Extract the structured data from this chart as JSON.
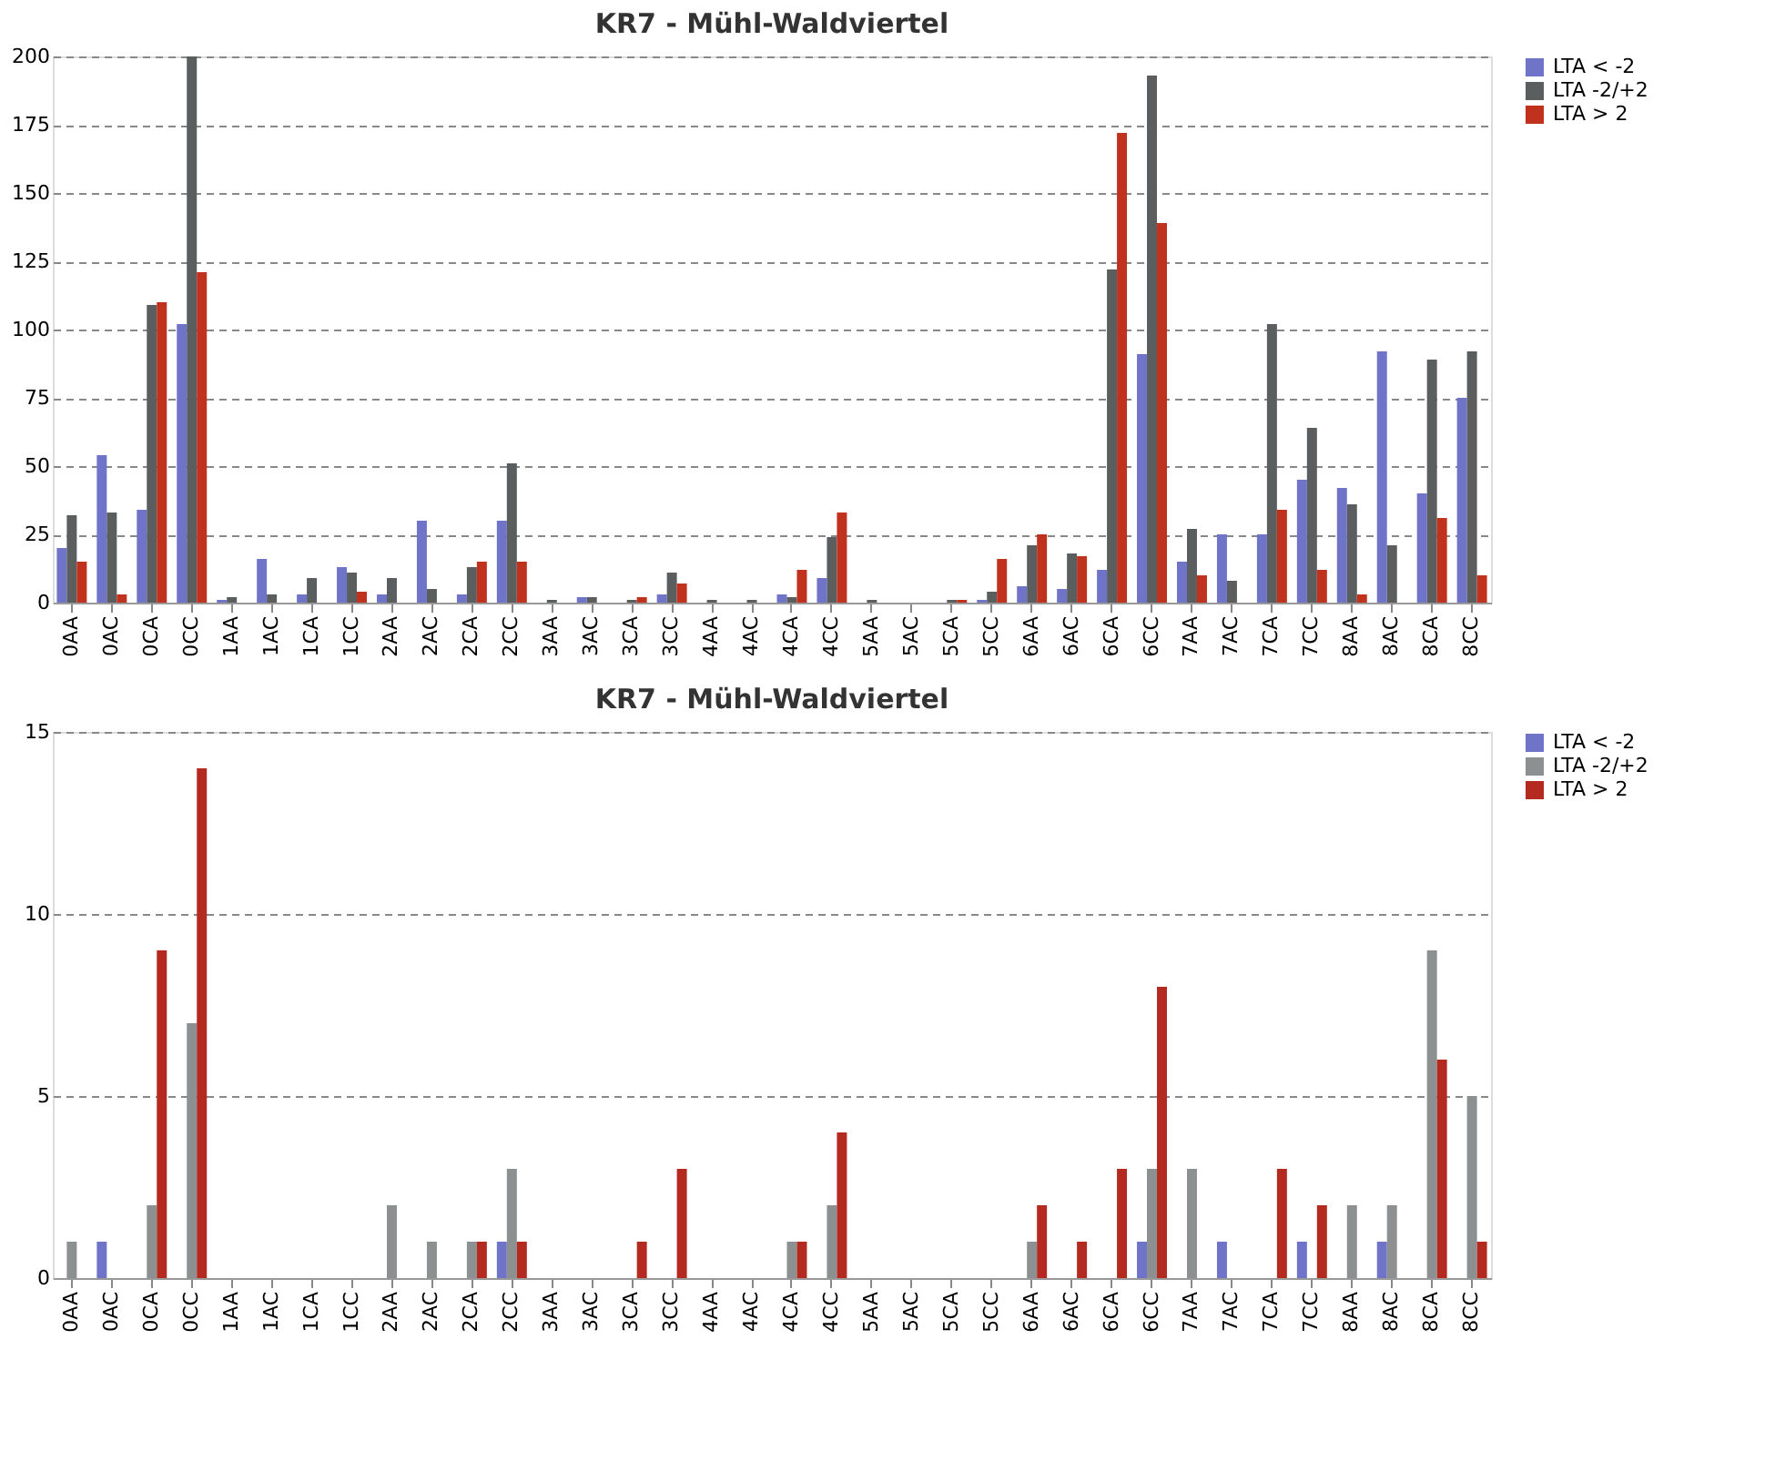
{
  "chart_data": [
    {
      "type": "bar",
      "title": "KR7 - Mühl-Waldviertel",
      "categories": [
        "0AA",
        "0AC",
        "0CA",
        "0CC",
        "1AA",
        "1AC",
        "1CA",
        "1CC",
        "2AA",
        "2AC",
        "2CA",
        "2CC",
        "3AA",
        "3AC",
        "3CA",
        "3CC",
        "4AA",
        "4AC",
        "4CA",
        "4CC",
        "5AA",
        "5AC",
        "5CA",
        "5CC",
        "6AA",
        "6AC",
        "6CA",
        "6CC",
        "7AA",
        "7AC",
        "7CA",
        "7CC",
        "8AA",
        "8AC",
        "8CA",
        "8CC"
      ],
      "series": [
        {
          "name": "LTA < -2",
          "color": "#6f74c8",
          "values": [
            20,
            54,
            34,
            102,
            1,
            16,
            3,
            13,
            3,
            30,
            3,
            30,
            0,
            2,
            0,
            3,
            0,
            0,
            3,
            9,
            0,
            0,
            0,
            1,
            6,
            5,
            12,
            91,
            15,
            25,
            25,
            45,
            42,
            92,
            40,
            75
          ]
        },
        {
          "name": "LTA -2/+2",
          "color": "#5a5e5e",
          "values": [
            32,
            33,
            109,
            200,
            2,
            3,
            9,
            11,
            9,
            5,
            13,
            51,
            1,
            2,
            1,
            11,
            1,
            1,
            2,
            24,
            1,
            0,
            1,
            4,
            21,
            18,
            122,
            193,
            27,
            8,
            102,
            64,
            36,
            21,
            89,
            92
          ]
        },
        {
          "name": "LTA > 2",
          "color": "#c0321e",
          "values": [
            15,
            3,
            110,
            121,
            0,
            0,
            0,
            4,
            0,
            0,
            15,
            15,
            0,
            0,
            2,
            7,
            0,
            0,
            12,
            33,
            0,
            0,
            1,
            16,
            25,
            17,
            172,
            139,
            10,
            0,
            34,
            12,
            3,
            0,
            31,
            10
          ]
        }
      ],
      "ylim": [
        0,
        200
      ],
      "yticks": [
        0,
        25,
        50,
        75,
        100,
        125,
        150,
        175,
        200
      ],
      "grid": "y",
      "legend": "right"
    },
    {
      "type": "bar",
      "title": "KR7 - Mühl-Waldviertel",
      "categories": [
        "0AA",
        "0AC",
        "0CA",
        "0CC",
        "1AA",
        "1AC",
        "1CA",
        "1CC",
        "2AA",
        "2AC",
        "2CA",
        "2CC",
        "3AA",
        "3AC",
        "3CA",
        "3CC",
        "4AA",
        "4AC",
        "4CA",
        "4CC",
        "5AA",
        "5AC",
        "5CA",
        "5CC",
        "6AA",
        "6AC",
        "6CA",
        "6CC",
        "7AA",
        "7AC",
        "7CA",
        "7CC",
        "8AA",
        "8AC",
        "8CA",
        "8CC"
      ],
      "series": [
        {
          "name": "LTA < -2",
          "color": "#6f74c8",
          "values": [
            0,
            1,
            0,
            0,
            0,
            0,
            0,
            0,
            0,
            0,
            0,
            1,
            0,
            0,
            0,
            0,
            0,
            0,
            0,
            0,
            0,
            0,
            0,
            0,
            0,
            0,
            0,
            1,
            0,
            1,
            0,
            1,
            0,
            1,
            0,
            0
          ]
        },
        {
          "name": "LTA -2/+2",
          "color": "#8c9090",
          "values": [
            1,
            0,
            2,
            7,
            0,
            0,
            0,
            0,
            2,
            1,
            1,
            3,
            0,
            0,
            0,
            0,
            0,
            0,
            1,
            2,
            0,
            0,
            0,
            0,
            1,
            0,
            0,
            3,
            3,
            0,
            0,
            0,
            2,
            2,
            9,
            5
          ]
        },
        {
          "name": "LTA > 2",
          "color": "#b52a20",
          "values": [
            0,
            0,
            9,
            14,
            0,
            0,
            0,
            0,
            0,
            0,
            1,
            1,
            0,
            0,
            1,
            3,
            0,
            0,
            1,
            4,
            0,
            0,
            0,
            0,
            2,
            1,
            3,
            8,
            0,
            0,
            3,
            2,
            0,
            0,
            6,
            1
          ]
        }
      ],
      "ylim": [
        0,
        15
      ],
      "yticks": [
        0,
        5,
        10,
        15
      ],
      "grid": "y",
      "legend": "right"
    }
  ]
}
